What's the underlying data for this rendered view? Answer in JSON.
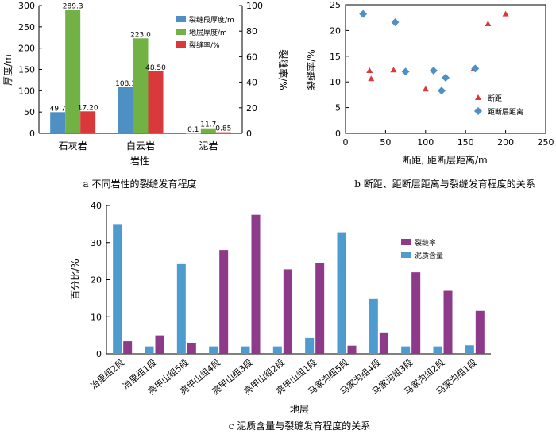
{
  "chart_data": [
    {
      "type": "bar",
      "panel": "a",
      "categories": [
        "石灰岩",
        "白云岩",
        "泥岩"
      ],
      "series": [
        {
          "name": "裂缝段厚度/m",
          "axis": "left",
          "color": "#4e8fc4",
          "values": [
            49.7,
            108.1,
            0.1
          ],
          "labels": [
            "49.7",
            "108.1",
            "0.1"
          ]
        },
        {
          "name": "地层厚度/m",
          "axis": "left",
          "color": "#72b143",
          "values": [
            289.3,
            223.0,
            11.7
          ],
          "labels": [
            "289.3",
            "223.0",
            "11.7"
          ]
        },
        {
          "name": "裂缝率/%",
          "axis": "right",
          "color": "#d9393a",
          "values": [
            17.2,
            48.5,
            0.85
          ],
          "labels": [
            "17.20",
            "48.50",
            "0.85"
          ]
        }
      ],
      "xlabel": "岩性",
      "ylabel": "厚度/m",
      "y2label": "裂缝率/%",
      "ylim": [
        0,
        300
      ],
      "y2lim": [
        0,
        100
      ],
      "yticks": [
        "0",
        "50",
        "100",
        "150",
        "200",
        "250",
        "300"
      ],
      "y2ticks": [
        "0",
        "20",
        "40",
        "60",
        "80",
        "100"
      ],
      "caption": "a  不同岩性的裂缝发育程度"
    },
    {
      "type": "scatter",
      "panel": "b",
      "series": [
        {
          "name": "断距",
          "marker": "triangle",
          "color": "#d9393a",
          "points": [
            [
              30,
              12.2
            ],
            [
              32,
              10.6
            ],
            [
              60,
              12.3
            ],
            [
              100,
              8.6
            ],
            [
              160,
              12.5
            ],
            [
              178,
              21.3
            ],
            [
              200,
              23.2
            ]
          ]
        },
        {
          "name": "距断层距离",
          "marker": "diamond",
          "color": "#4e8fc4",
          "points": [
            [
              22,
              23.2
            ],
            [
              62,
              21.6
            ],
            [
              75,
              12.0
            ],
            [
              110,
              12.2
            ],
            [
              120,
              8.3
            ],
            [
              125,
              10.8
            ],
            [
              162,
              12.6
            ]
          ]
        }
      ],
      "xlabel": "断距, 距断层距离/m",
      "ylabel": "裂缝率/%",
      "xlim": [
        0,
        250
      ],
      "ylim": [
        0,
        25
      ],
      "xticks": [
        "0",
        "50",
        "100",
        "150",
        "200",
        "250"
      ],
      "yticks": [
        "0",
        "5",
        "10",
        "15",
        "20",
        "25"
      ],
      "caption": "b  断距、距断层距离与裂缝发育程度的关系"
    },
    {
      "type": "bar",
      "panel": "c",
      "categories": [
        "冶里组2段",
        "冶里组1段",
        "亮甲山组5段",
        "亮甲山组4段",
        "亮甲山组3段",
        "亮甲山组2段",
        "亮甲山组1段",
        "马家沟组5段",
        "马家沟组4段",
        "马家沟组3段",
        "马家沟组2段",
        "马家沟组1段"
      ],
      "series": [
        {
          "name": "泥质含量",
          "color": "#4e9bd0",
          "values": [
            35.0,
            2.0,
            24.2,
            2.0,
            2.0,
            2.0,
            4.3,
            32.6,
            14.8,
            2.0,
            2.0,
            2.3
          ]
        },
        {
          "name": "裂缝率",
          "color": "#8e3a8a",
          "values": [
            3.4,
            5.0,
            3.0,
            28.0,
            37.5,
            22.8,
            24.5,
            2.2,
            5.6,
            22.0,
            17.0,
            11.6
          ]
        }
      ],
      "legend_order": [
        "裂缝率",
        "泥质含量"
      ],
      "xlabel": "地层",
      "ylabel": "百分比/%",
      "ylim": [
        0,
        40
      ],
      "yticks": [
        "0",
        "10",
        "20",
        "30",
        "40"
      ],
      "caption": "c  泥质含量与裂缝发育程度的关系"
    }
  ]
}
